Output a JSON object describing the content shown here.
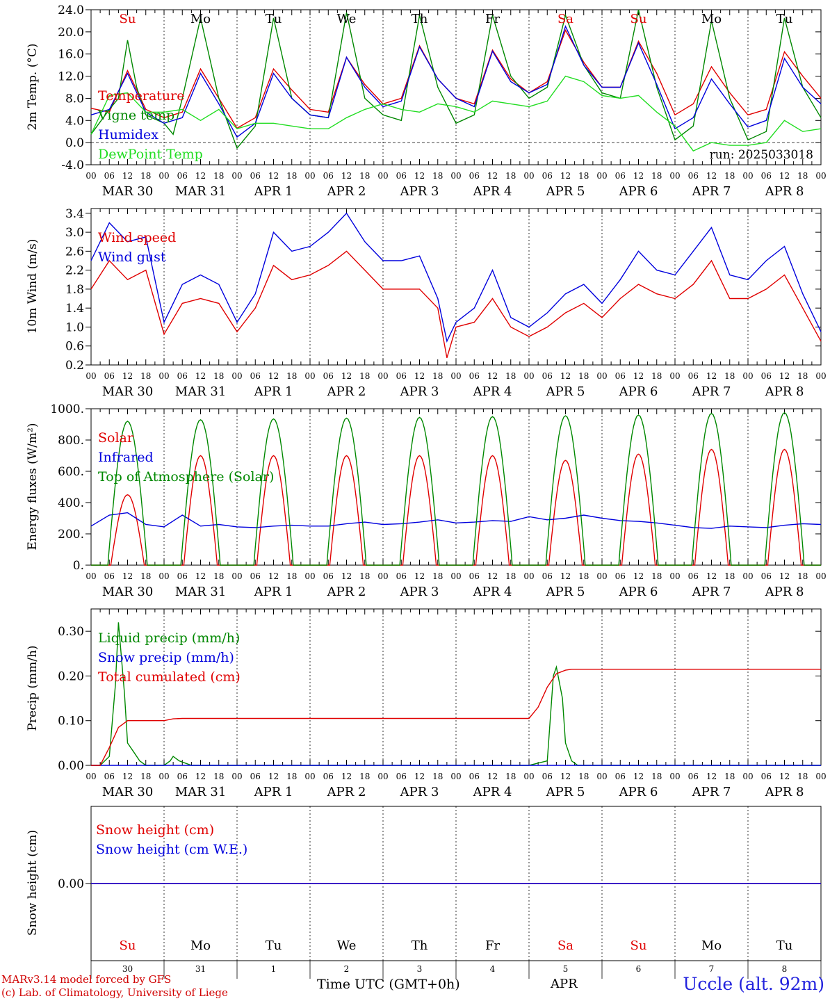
{
  "footer": {
    "model_credit": "MARv3.14 model forced by GFS",
    "lab_credit": "(c) Lab. of Climatology, University of Liege",
    "time_axis_label": "Time UTC (GMT+0h)",
    "month_label": "APR",
    "station": "Uccle (alt. 92m)"
  },
  "weekdays": [
    "Su",
    "Mo",
    "Tu",
    "We",
    "Th",
    "Fr",
    "Sa",
    "Su",
    "Mo",
    "Tu"
  ],
  "weekend_flags": [
    true,
    false,
    false,
    false,
    false,
    false,
    true,
    true,
    false,
    false
  ],
  "date_labels": [
    "MAR 30",
    "MAR 31",
    "APR  1",
    "APR  2",
    "APR  3",
    "APR  4",
    "APR  5",
    "APR  6",
    "APR  7",
    "APR  8"
  ],
  "day_numbers": [
    "30",
    "31",
    "1",
    "2",
    "3",
    "4",
    "5",
    "6",
    "7",
    "8"
  ],
  "hour_ticks": [
    "00",
    "06",
    "12",
    "18"
  ],
  "colors": {
    "red": "#e00000",
    "blue": "#0000dd",
    "green": "#008800",
    "light_green": "#22dd22",
    "grid": "#000000"
  },
  "chart_data": [
    {
      "type": "line",
      "panel": "temperature",
      "ylabel": "2m Temp. (°C)",
      "ylim": [
        -4.0,
        24.0
      ],
      "yticks": [
        "-4.0",
        "0.0",
        "4.0",
        "8.0",
        "12.0",
        "16.0",
        "20.0",
        "24.0"
      ],
      "run_label": "run: 2025033018",
      "x_unit": "hours since MAR 30 00 UTC",
      "series": [
        {
          "name": "Temperature",
          "color": "red",
          "x": [
            0,
            6,
            12,
            18,
            24,
            30,
            36,
            42,
            48,
            54,
            60,
            66,
            72,
            78,
            84,
            90,
            96,
            102,
            108,
            114,
            120,
            126,
            132,
            138,
            144,
            150,
            156,
            162,
            168,
            174,
            180,
            186,
            192,
            198,
            204,
            210,
            216,
            222,
            228,
            234,
            240
          ],
          "y": [
            6.2,
            5.5,
            13.0,
            6.0,
            4.5,
            5.5,
            13.3,
            8.0,
            2.6,
            4.5,
            13.3,
            9.5,
            6.0,
            5.5,
            15.4,
            10.5,
            7.0,
            8.0,
            17.5,
            11.5,
            8.0,
            7.0,
            16.7,
            11.5,
            9.0,
            11.0,
            20.3,
            14.5,
            10.0,
            10.0,
            18.3,
            12.5,
            5.0,
            7.0,
            13.7,
            9.0,
            5.0,
            6.0,
            16.4,
            12.0,
            8.0
          ]
        },
        {
          "name": "Vigne temp",
          "color": "green",
          "x": [
            0,
            6,
            9,
            12,
            15,
            18,
            24,
            27,
            30,
            36,
            42,
            48,
            54,
            60,
            66,
            72,
            78,
            84,
            90,
            96,
            102,
            108,
            114,
            120,
            126,
            132,
            138,
            144,
            150,
            156,
            162,
            168,
            174,
            180,
            186,
            192,
            198,
            204,
            210,
            216,
            222,
            228,
            234,
            240
          ],
          "y": [
            1.5,
            6.0,
            8.0,
            18.5,
            10.0,
            5.0,
            3.5,
            1.5,
            8.0,
            22.5,
            8.0,
            -1.0,
            3.0,
            22.5,
            8.0,
            5.0,
            4.5,
            23.5,
            8.0,
            5.0,
            4.0,
            23.0,
            10.0,
            3.5,
            5.0,
            23.0,
            12.0,
            8.0,
            10.0,
            23.0,
            14.0,
            9.0,
            8.0,
            24.0,
            10.0,
            0.5,
            3.0,
            22.0,
            8.0,
            0.5,
            2.0,
            22.5,
            10.0,
            4.5
          ]
        },
        {
          "name": "Humidex",
          "color": "blue",
          "x": [
            0,
            6,
            12,
            18,
            24,
            30,
            36,
            42,
            48,
            54,
            60,
            66,
            72,
            78,
            84,
            90,
            96,
            102,
            108,
            114,
            120,
            126,
            132,
            138,
            144,
            150,
            156,
            162,
            168,
            174,
            180,
            186,
            192,
            198,
            204,
            210,
            216,
            222,
            228,
            234,
            240
          ],
          "y": [
            5.0,
            6.0,
            12.5,
            5.5,
            3.5,
            4.5,
            12.5,
            7.0,
            1.0,
            3.5,
            12.5,
            8.0,
            5.0,
            4.5,
            15.4,
            10.0,
            6.5,
            7.5,
            17.3,
            11.5,
            8.0,
            6.5,
            16.5,
            11.0,
            9.0,
            10.5,
            21.0,
            14.0,
            10.0,
            10.0,
            18.0,
            10.5,
            2.5,
            4.5,
            11.5,
            7.0,
            2.8,
            4.0,
            15.2,
            10.0,
            7.0
          ]
        },
        {
          "name": "DewPoint Temp",
          "color": "light_green",
          "x": [
            0,
            6,
            12,
            18,
            24,
            30,
            36,
            42,
            48,
            54,
            60,
            66,
            72,
            78,
            84,
            90,
            96,
            102,
            108,
            114,
            120,
            126,
            132,
            138,
            144,
            150,
            156,
            162,
            168,
            174,
            180,
            186,
            192,
            198,
            204,
            210,
            216,
            222,
            228,
            234,
            240
          ],
          "y": [
            1.5,
            8.5,
            9.0,
            5.5,
            5.5,
            6.0,
            4.0,
            6.0,
            2.5,
            3.5,
            3.5,
            3.0,
            2.5,
            2.5,
            4.5,
            6.0,
            7.0,
            6.0,
            5.5,
            7.0,
            6.5,
            5.5,
            7.5,
            7.0,
            6.5,
            7.5,
            12.0,
            11.0,
            8.5,
            8.0,
            8.5,
            5.5,
            3.0,
            -1.5,
            0.0,
            -0.5,
            -0.5,
            0.0,
            4.0,
            2.0,
            2.5
          ]
        }
      ]
    },
    {
      "type": "line",
      "panel": "wind",
      "ylabel": "10m Wind (m/s)",
      "ylim": [
        0.2,
        3.5
      ],
      "yticks": [
        "0.2",
        "0.6",
        "1.0",
        "1.4",
        "1.8",
        "2.2",
        "2.6",
        "3.0",
        "3.4"
      ],
      "x_unit": "hours since MAR 30 00 UTC",
      "series": [
        {
          "name": "Wind speed",
          "color": "red",
          "x": [
            0,
            6,
            12,
            18,
            24,
            30,
            36,
            42,
            48,
            54,
            60,
            66,
            72,
            78,
            84,
            90,
            96,
            102,
            108,
            114,
            117,
            120,
            126,
            132,
            138,
            144,
            150,
            156,
            162,
            168,
            174,
            180,
            186,
            192,
            198,
            204,
            210,
            216,
            222,
            228,
            234,
            240
          ],
          "y": [
            1.8,
            2.4,
            2.0,
            2.2,
            0.85,
            1.5,
            1.6,
            1.5,
            0.9,
            1.4,
            2.3,
            2.0,
            2.1,
            2.3,
            2.6,
            2.2,
            1.8,
            1.8,
            1.8,
            1.4,
            0.35,
            1.0,
            1.1,
            1.6,
            1.0,
            0.8,
            1.0,
            1.3,
            1.5,
            1.2,
            1.6,
            1.9,
            1.7,
            1.6,
            1.9,
            2.4,
            1.6,
            1.6,
            1.8,
            2.1,
            1.4,
            0.7
          ]
        },
        {
          "name": "Wind gust",
          "color": "blue",
          "x": [
            0,
            6,
            12,
            18,
            24,
            30,
            36,
            42,
            48,
            54,
            60,
            66,
            72,
            78,
            84,
            90,
            96,
            102,
            108,
            114,
            117,
            120,
            126,
            132,
            138,
            144,
            150,
            156,
            162,
            168,
            174,
            180,
            186,
            192,
            198,
            204,
            210,
            216,
            222,
            228,
            234,
            240
          ],
          "y": [
            2.4,
            3.2,
            2.8,
            2.9,
            1.1,
            1.9,
            2.1,
            1.9,
            1.1,
            1.7,
            3.0,
            2.6,
            2.7,
            3.0,
            3.4,
            2.8,
            2.4,
            2.4,
            2.5,
            1.6,
            0.7,
            1.1,
            1.4,
            2.2,
            1.2,
            1.0,
            1.3,
            1.7,
            1.9,
            1.5,
            2.0,
            2.6,
            2.2,
            2.1,
            2.6,
            3.1,
            2.1,
            2.0,
            2.4,
            2.7,
            1.7,
            0.9
          ]
        }
      ]
    },
    {
      "type": "line",
      "panel": "energy",
      "ylabel": "Energy fluxes (W/m²)",
      "ylim": [
        0,
        1000
      ],
      "yticks": [
        "0.",
        "200.",
        "400.",
        "600.",
        "800.",
        "1000."
      ],
      "x_unit": "hours since MAR 30 00 UTC",
      "series": [
        {
          "name": "Solar",
          "color": "red",
          "peaks": [
            450,
            700,
            700,
            700,
            700,
            700,
            670,
            710,
            740,
            740
          ]
        },
        {
          "name": "Infrared",
          "color": "blue",
          "x": [
            0,
            6,
            12,
            18,
            24,
            30,
            36,
            42,
            48,
            54,
            60,
            66,
            72,
            78,
            84,
            90,
            96,
            102,
            108,
            114,
            120,
            126,
            132,
            138,
            144,
            150,
            156,
            162,
            168,
            174,
            180,
            186,
            192,
            198,
            204,
            210,
            216,
            222,
            228,
            234,
            240
          ],
          "y": [
            250,
            320,
            335,
            260,
            245,
            320,
            250,
            260,
            245,
            240,
            250,
            255,
            250,
            250,
            265,
            275,
            260,
            265,
            275,
            290,
            270,
            275,
            285,
            280,
            310,
            290,
            300,
            320,
            300,
            285,
            280,
            270,
            255,
            240,
            235,
            250,
            245,
            240,
            255,
            265,
            260
          ]
        },
        {
          "name": "Top of Atmosphere (Solar)",
          "color": "green",
          "peaks": [
            920,
            930,
            935,
            940,
            945,
            950,
            955,
            960,
            970,
            975
          ]
        }
      ]
    },
    {
      "type": "line",
      "panel": "precip",
      "ylabel": "Precip (mm/h)",
      "ylim": [
        0,
        0.35
      ],
      "yticks": [
        "0.00",
        "0.10",
        "0.20",
        "0.30"
      ],
      "x_unit": "hours since MAR 30 00 UTC",
      "series": [
        {
          "name": "Liquid precip (mm/h)",
          "color": "green",
          "x": [
            0,
            3,
            6,
            8,
            9,
            11,
            12,
            14,
            16,
            18,
            20,
            24,
            26,
            27,
            29,
            31,
            33,
            36,
            144,
            150,
            152,
            153,
            155,
            156,
            158,
            160,
            240
          ],
          "y": [
            0,
            0,
            0.02,
            0.18,
            0.32,
            0.16,
            0.05,
            0.03,
            0.01,
            0,
            0,
            0,
            0.01,
            0.02,
            0.01,
            0.005,
            0,
            0,
            0,
            0.01,
            0.2,
            0.22,
            0.15,
            0.05,
            0.01,
            0,
            0
          ]
        },
        {
          "name": "Snow precip (mm/h)",
          "color": "blue",
          "x": [
            0,
            240
          ],
          "y": [
            0,
            0
          ]
        },
        {
          "name": "Total cumulated (cm)",
          "color": "red",
          "x": [
            0,
            3,
            6,
            9,
            12,
            15,
            24,
            27,
            30,
            144,
            147,
            150,
            153,
            156,
            158,
            240
          ],
          "y": [
            0,
            0,
            0.04,
            0.085,
            0.1,
            0.1,
            0.1,
            0.104,
            0.105,
            0.105,
            0.13,
            0.175,
            0.205,
            0.213,
            0.215,
            0.215
          ]
        }
      ]
    },
    {
      "type": "line",
      "panel": "snow",
      "ylabel": "Snow height (cm)",
      "yticks": [
        "0.00"
      ],
      "x_unit": "hours since MAR 30 00 UTC",
      "series": [
        {
          "name": "Snow height (cm)",
          "color": "red",
          "x": [
            0,
            240
          ],
          "y": [
            0,
            0
          ]
        },
        {
          "name": "Snow height (cm W.E.)",
          "color": "blue",
          "x": [
            0,
            240
          ],
          "y": [
            0,
            0
          ]
        }
      ]
    }
  ]
}
